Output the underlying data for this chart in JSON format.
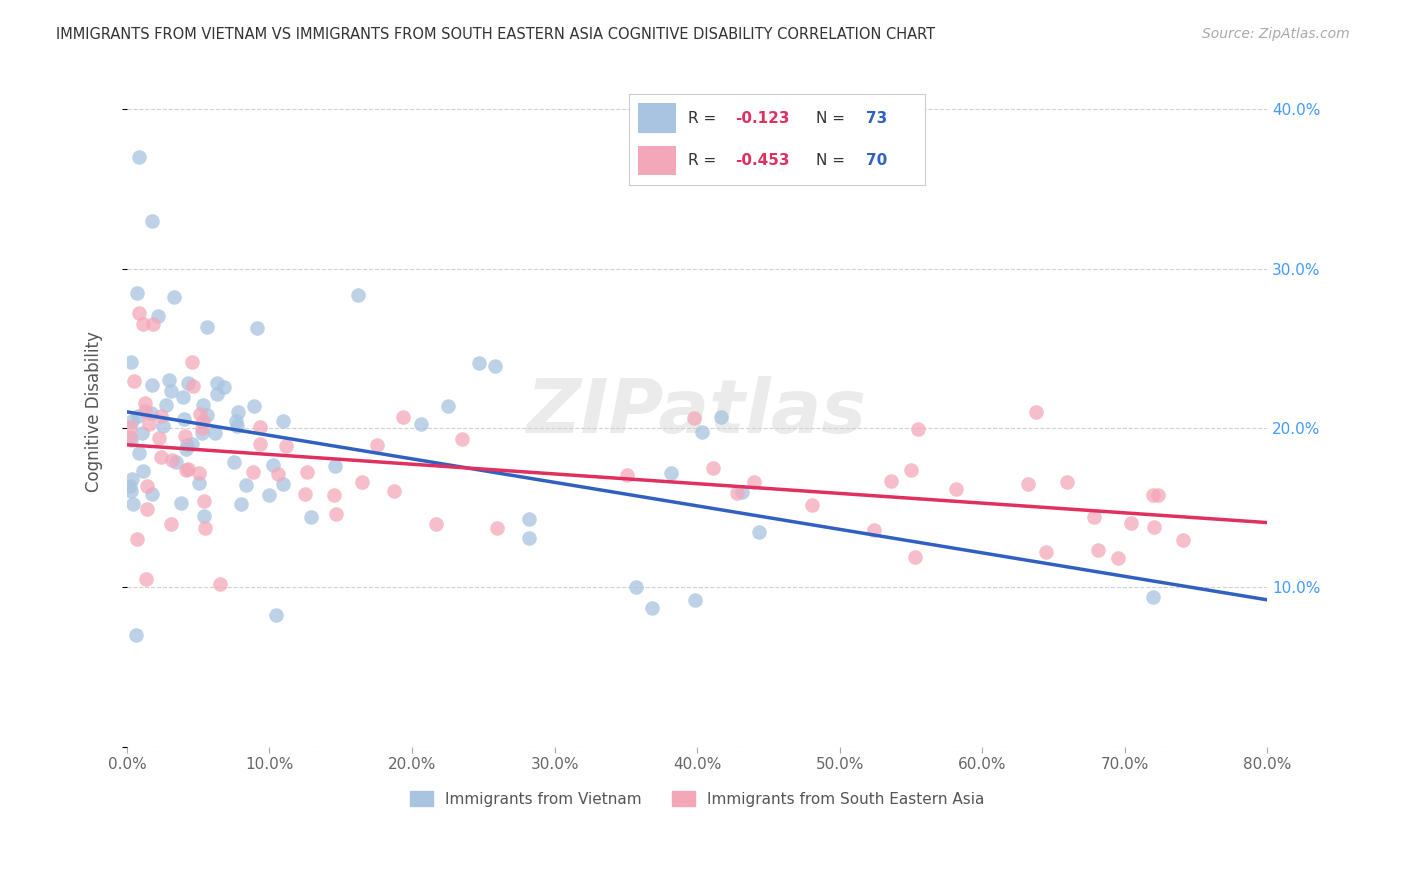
{
  "title": "IMMIGRANTS FROM VIETNAM VS IMMIGRANTS FROM SOUTH EASTERN ASIA COGNITIVE DISABILITY CORRELATION CHART",
  "source": "Source: ZipAtlas.com",
  "ylabel": "Cognitive Disability",
  "xlim": [
    0.0,
    0.8
  ],
  "ylim": [
    0.0,
    0.42
  ],
  "series1_label": "Immigrants from Vietnam",
  "series2_label": "Immigrants from South Eastern Asia",
  "series1_color": "#a8c4e0",
  "series2_color": "#f4a7b9",
  "series1_line_color": "#3060c0",
  "series2_line_color": "#e03060",
  "series1_R": -0.123,
  "series1_N": 73,
  "series2_R": -0.453,
  "series2_N": 70,
  "watermark": "ZIPatlas"
}
